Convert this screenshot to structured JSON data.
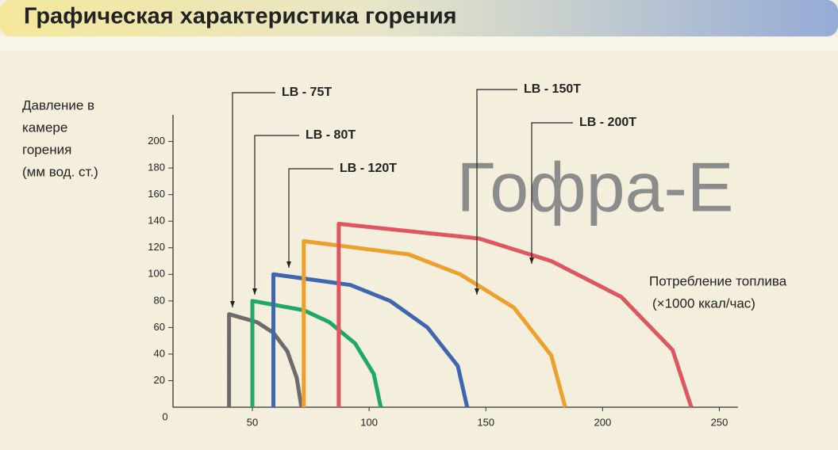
{
  "chart_data": {
    "type": "line",
    "title": "Графическая характеристика горения",
    "watermark": "Гофра-Е",
    "y_label": [
      "Давление в",
      "камере",
      "горения",
      "(мм вод. ст.)"
    ],
    "x_label": [
      "Потребление топлива",
      "(×1000 ккал/час)"
    ],
    "xlim": [
      16,
      258
    ],
    "xticks": [
      50,
      100,
      150,
      200,
      250
    ],
    "ylim": [
      0,
      220
    ],
    "yticks": [
      0,
      20,
      40,
      60,
      80,
      100,
      120,
      140,
      160,
      180,
      200
    ],
    "series": [
      {
        "name": "LB - 75T",
        "color": "#6e6a6e",
        "x": [
          40,
          40,
          52,
          59,
          65,
          69,
          71
        ],
        "values": [
          0,
          70,
          64,
          56,
          42,
          22,
          0
        ]
      },
      {
        "name": "LB - 80T",
        "color": "#1fa86a",
        "x": [
          50,
          50,
          72,
          83,
          94,
          102,
          105
        ],
        "values": [
          0,
          80,
          73,
          64,
          48,
          25,
          0
        ]
      },
      {
        "name": "LB - 120T",
        "color": "#3f66b0",
        "x": [
          59,
          59,
          92,
          109,
          125,
          138,
          142
        ],
        "values": [
          0,
          100,
          92,
          80,
          60,
          31,
          0
        ]
      },
      {
        "name": "LB - 150T",
        "color": "#eea02e",
        "x": [
          72,
          72,
          117,
          139,
          162,
          178,
          184
        ],
        "values": [
          0,
          125,
          115,
          100,
          75,
          39,
          0
        ]
      },
      {
        "name": "LB - 200T",
        "color": "#df5560",
        "x": [
          87,
          87,
          147,
          178,
          208,
          230,
          238
        ],
        "values": [
          0,
          138,
          127,
          110,
          83,
          43,
          0
        ]
      }
    ]
  }
}
